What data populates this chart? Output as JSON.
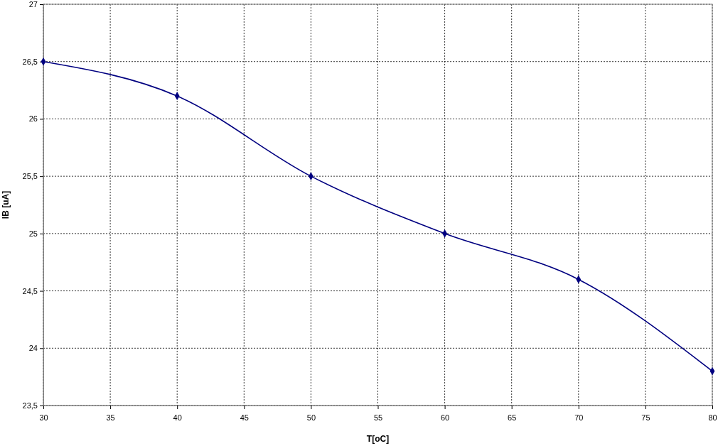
{
  "chart_data": {
    "type": "line",
    "xlabel": "T[oC]",
    "ylabel": "IB [uA]",
    "x": [
      30,
      40,
      50,
      60,
      70,
      80
    ],
    "series": [
      {
        "color": "#000080",
        "values": [
          26.5,
          26.2,
          25.5,
          25.0,
          24.6,
          23.8
        ]
      }
    ],
    "xlim": [
      30,
      80
    ],
    "xticks": [
      30,
      35,
      40,
      45,
      50,
      55,
      60,
      65,
      70,
      75,
      80
    ],
    "ylim": [
      23.5,
      27
    ],
    "yticks": [
      {
        "value": 23.5,
        "label": "23,5"
      },
      24,
      {
        "value": 24.5,
        "label": "24,5"
      },
      25,
      {
        "value": 25.5,
        "label": "25,5"
      },
      26,
      {
        "value": 26.5,
        "label": "26,5"
      },
      27
    ],
    "grid": true,
    "marker": "diamond",
    "line_style": "solid"
  }
}
